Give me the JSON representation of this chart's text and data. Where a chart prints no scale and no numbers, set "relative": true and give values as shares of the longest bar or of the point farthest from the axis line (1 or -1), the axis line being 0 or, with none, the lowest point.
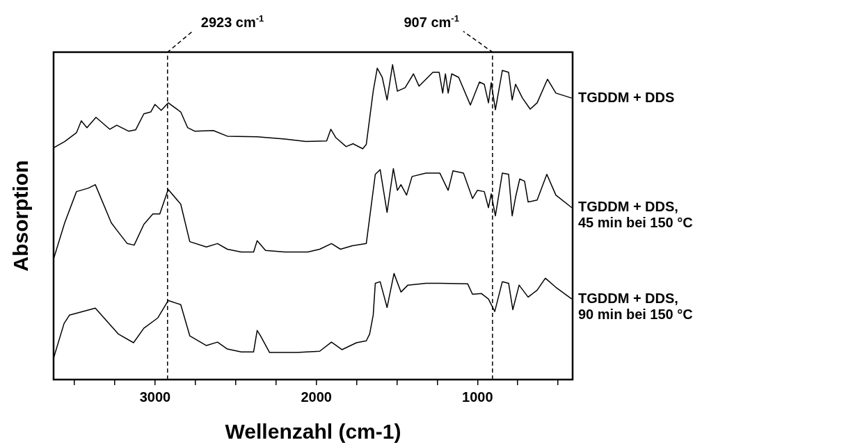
{
  "chart_data": {
    "type": "line",
    "xlabel": "Wellenzahl (cm-1)",
    "ylabel": "Absorption",
    "relative": true,
    "xlim": [
      3630,
      410
    ],
    "xticks": [
      {
        "value": 3500,
        "label": null
      },
      {
        "value": 3250,
        "label": null
      },
      3000,
      {
        "value": 2750,
        "label": null
      },
      {
        "value": 2500,
        "label": null
      },
      {
        "value": 2250,
        "label": null
      },
      2000,
      {
        "value": 1750,
        "label": null
      },
      {
        "value": 1500,
        "label": null
      },
      {
        "value": 1250,
        "label": null
      },
      1000,
      {
        "value": 750,
        "label": null
      },
      {
        "value": 500,
        "label": null
      }
    ],
    "ref_lines": [
      {
        "axis": "x",
        "value": 2923,
        "label": "2923 cm$^{-1}$",
        "line_style": "dashed",
        "color": "#000000"
      },
      {
        "axis": "x",
        "value": 907,
        "label": "907 cm$^{-1}$",
        "line_style": "dashed",
        "color": "#000000"
      }
    ],
    "series": [
      {
        "name": "TGDDM + DDS",
        "color": "#000000",
        "x": [
          3630,
          3561,
          3488,
          3458,
          3423,
          3367,
          3281,
          3238,
          3165,
          3121,
          3070,
          3027,
          3001,
          2962,
          2919,
          2841,
          2798,
          2755,
          2639,
          2552,
          2367,
          2195,
          2065,
          1936,
          1910,
          1880,
          1815,
          1772,
          1712,
          1690,
          1647,
          1622,
          1591,
          1561,
          1527,
          1497,
          1449,
          1397,
          1363,
          1277,
          1238,
          1216,
          1199,
          1182,
          1160,
          1117,
          1044,
          988,
          958,
          932,
          915,
          889,
          846,
          807,
          785,
          764,
          721,
          673,
          630,
          566,
          514,
          415
        ],
        "values": [
          0.736,
          0.756,
          0.784,
          0.822,
          0.8,
          0.833,
          0.795,
          0.808,
          0.789,
          0.793,
          0.844,
          0.85,
          0.874,
          0.855,
          0.879,
          0.85,
          0.8,
          0.789,
          0.791,
          0.773,
          0.771,
          0.764,
          0.756,
          0.758,
          0.795,
          0.769,
          0.74,
          0.749,
          0.733,
          0.747,
          0.916,
          0.989,
          0.96,
          0.888,
          1.0,
          0.916,
          0.927,
          0.971,
          0.932,
          0.976,
          0.976,
          0.91,
          0.971,
          0.91,
          0.971,
          0.96,
          0.872,
          0.945,
          0.938,
          0.879,
          0.943,
          0.857,
          0.982,
          0.976,
          0.888,
          0.938,
          0.894,
          0.859,
          0.879,
          0.954,
          0.91,
          0.894
        ]
      },
      {
        "name": "TGDDM + DDS,\n45 min bei 150 °C",
        "color": "#000000",
        "x": [
          3630,
          3561,
          3488,
          3414,
          3371,
          3272,
          3229,
          3173,
          3130,
          3070,
          3014,
          2971,
          2919,
          2841,
          2785,
          2682,
          2613,
          2552,
          2466,
          2389,
          2367,
          2315,
          2195,
          2053,
          1979,
          1906,
          1850,
          1777,
          1690,
          1634,
          1604,
          1561,
          1522,
          1497,
          1475,
          1440,
          1406,
          1320,
          1234,
          1203,
          1182,
          1152,
          1087,
          1031,
          1001,
          958,
          932,
          915,
          889,
          846,
          807,
          785,
          764,
          738,
          708,
          686,
          630,
          570,
          514,
          415
        ],
        "values": [
          0.383,
          0.498,
          0.597,
          0.608,
          0.619,
          0.498,
          0.469,
          0.432,
          0.427,
          0.493,
          0.526,
          0.526,
          0.604,
          0.557,
          0.438,
          0.421,
          0.432,
          0.414,
          0.405,
          0.405,
          0.441,
          0.41,
          0.405,
          0.405,
          0.414,
          0.432,
          0.414,
          0.425,
          0.432,
          0.652,
          0.667,
          0.531,
          0.67,
          0.601,
          0.619,
          0.586,
          0.645,
          0.656,
          0.656,
          0.623,
          0.601,
          0.663,
          0.656,
          0.575,
          0.601,
          0.597,
          0.546,
          0.59,
          0.52,
          0.656,
          0.652,
          0.52,
          0.579,
          0.637,
          0.63,
          0.564,
          0.57,
          0.652,
          0.586,
          0.546
        ]
      },
      {
        "name": "TGDDM + DDS,\n90 min bei 150 °C",
        "color": "#000000",
        "x": [
          3630,
          3565,
          3531,
          3371,
          3229,
          3134,
          3070,
          2983,
          2919,
          2841,
          2785,
          2682,
          2613,
          2552,
          2466,
          2389,
          2367,
          2346,
          2290,
          2121,
          1979,
          1906,
          1841,
          1751,
          1690,
          1669,
          1647,
          1634,
          1604,
          1561,
          1518,
          1475,
          1432,
          1320,
          1234,
          1061,
          1031,
          975,
          932,
          893,
          846,
          807,
          781,
          742,
          686,
          630,
          579,
          514,
          415
        ],
        "values": [
          0.068,
          0.178,
          0.205,
          0.227,
          0.145,
          0.117,
          0.163,
          0.196,
          0.251,
          0.238,
          0.139,
          0.108,
          0.119,
          0.097,
          0.088,
          0.088,
          0.156,
          0.139,
          0.086,
          0.086,
          0.09,
          0.119,
          0.095,
          0.117,
          0.123,
          0.145,
          0.205,
          0.306,
          0.311,
          0.229,
          0.337,
          0.278,
          0.3,
          0.306,
          0.306,
          0.304,
          0.271,
          0.273,
          0.256,
          0.216,
          0.311,
          0.306,
          0.222,
          0.3,
          0.262,
          0.284,
          0.322,
          0.293,
          0.256
        ]
      }
    ]
  }
}
